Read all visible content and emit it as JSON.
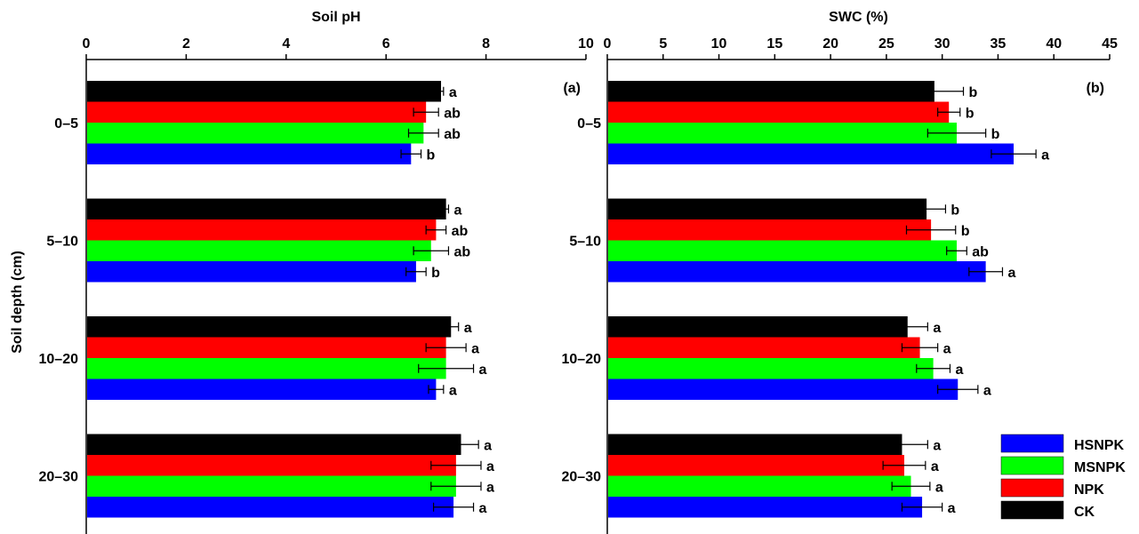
{
  "figure": {
    "y_axis_title": "Soil depth (cm)",
    "legend": [
      {
        "label": "HSNPK",
        "color": "#0000ff"
      },
      {
        "label": "MSNPK",
        "color": "#00ff00"
      },
      {
        "label": "NPK",
        "color": "#ff0000"
      },
      {
        "label": "CK",
        "color": "#000000"
      }
    ]
  },
  "chart_data": [
    {
      "type": "bar",
      "orientation": "horizontal",
      "panel_label": "(a)",
      "title": "Soil pH",
      "xlim": [
        0,
        10
      ],
      "xticks": [
        "0",
        "2",
        "4",
        "6",
        "8",
        "10"
      ],
      "xtick_values": [
        0,
        2,
        4,
        6,
        8,
        10
      ],
      "ylabel": "Soil depth (cm)",
      "categories": [
        "0–5",
        "5–10",
        "10–20",
        "20–30"
      ],
      "series": [
        {
          "name": "CK",
          "color": "#000000",
          "values": [
            7.1,
            7.2,
            7.3,
            7.5
          ],
          "errors": [
            0.05,
            0.05,
            0.15,
            0.35
          ],
          "letters": [
            "a",
            "a",
            "a",
            "a"
          ]
        },
        {
          "name": "NPK",
          "color": "#ff0000",
          "values": [
            6.8,
            7.0,
            7.2,
            7.4
          ],
          "errors": [
            0.25,
            0.2,
            0.4,
            0.5
          ],
          "letters": [
            "ab",
            "ab",
            "a",
            "a"
          ]
        },
        {
          "name": "MSNPK",
          "color": "#00ff00",
          "values": [
            6.75,
            6.9,
            7.2,
            7.4
          ],
          "errors": [
            0.3,
            0.35,
            0.55,
            0.5
          ],
          "letters": [
            "ab",
            "ab",
            "a",
            "a"
          ]
        },
        {
          "name": "HSNPK",
          "color": "#0000ff",
          "values": [
            6.5,
            6.6,
            7.0,
            7.35
          ],
          "errors": [
            0.2,
            0.2,
            0.15,
            0.4
          ],
          "letters": [
            "b",
            "b",
            "a",
            "a"
          ]
        }
      ]
    },
    {
      "type": "bar",
      "orientation": "horizontal",
      "panel_label": "(b)",
      "title": "SWC (%)",
      "xlim": [
        0,
        45
      ],
      "xticks": [
        "0",
        "5",
        "10",
        "15",
        "20",
        "25",
        "30",
        "35",
        "40",
        "45"
      ],
      "xtick_values": [
        0,
        5,
        10,
        15,
        20,
        25,
        30,
        35,
        40,
        45
      ],
      "categories": [
        "0–5",
        "5–10",
        "10–20",
        "20–30"
      ],
      "series": [
        {
          "name": "CK",
          "color": "#000000",
          "values": [
            29.3,
            28.6,
            26.9,
            26.4
          ],
          "errors": [
            2.6,
            1.7,
            1.8,
            2.3
          ],
          "letters": [
            "b",
            "b",
            "a",
            "a"
          ]
        },
        {
          "name": "NPK",
          "color": "#ff0000",
          "values": [
            30.6,
            29.0,
            28.0,
            26.6
          ],
          "errors": [
            1.0,
            2.2,
            1.6,
            1.9
          ],
          "letters": [
            "b",
            "b",
            "a",
            "a"
          ]
        },
        {
          "name": "MSNPK",
          "color": "#00ff00",
          "values": [
            31.3,
            31.3,
            29.2,
            27.2
          ],
          "errors": [
            2.6,
            0.9,
            1.5,
            1.7
          ],
          "letters": [
            "b",
            "ab",
            "a",
            "a"
          ]
        },
        {
          "name": "HSNPK",
          "color": "#0000ff",
          "values": [
            36.4,
            33.9,
            31.4,
            28.2
          ],
          "errors": [
            2.0,
            1.5,
            1.8,
            1.8
          ],
          "letters": [
            "a",
            "a",
            "a",
            "a"
          ]
        }
      ]
    }
  ]
}
